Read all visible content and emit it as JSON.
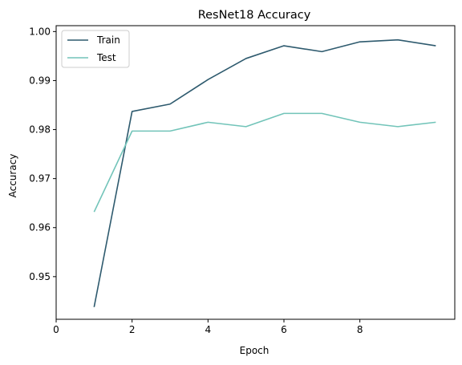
{
  "chart_data": {
    "type": "line",
    "title": "ResNet18 Accuracy",
    "xlabel": "Epoch",
    "ylabel": "Accuracy",
    "xlim": [
      0,
      10.5
    ],
    "ylim": [
      0.9413,
      1.0012
    ],
    "xticks": [
      0,
      2,
      4,
      6,
      8
    ],
    "xtick_labels": [
      "0",
      "2",
      "4",
      "6",
      "8"
    ],
    "yticks": [
      0.95,
      0.96,
      0.97,
      0.98,
      0.99,
      1.0
    ],
    "ytick_labels": [
      "0.95",
      "0.96",
      "0.97",
      "0.98",
      "0.99",
      "1.00"
    ],
    "grid": false,
    "legend_position": "upper-left",
    "x": [
      1,
      2,
      3,
      4,
      5,
      6,
      7,
      8,
      9,
      10
    ],
    "series": [
      {
        "name": "Train",
        "color": "#2e5a6e",
        "values": [
          0.9438,
          0.9837,
          0.9852,
          0.9902,
          0.9945,
          0.9971,
          0.9959,
          0.9979,
          0.9983,
          0.9971
        ]
      },
      {
        "name": "Test",
        "color": "#72c4b9",
        "values": [
          0.9632,
          0.9797,
          0.9797,
          0.9815,
          0.9806,
          0.9833,
          0.9833,
          0.9815,
          0.9806,
          0.9815
        ]
      }
    ]
  }
}
